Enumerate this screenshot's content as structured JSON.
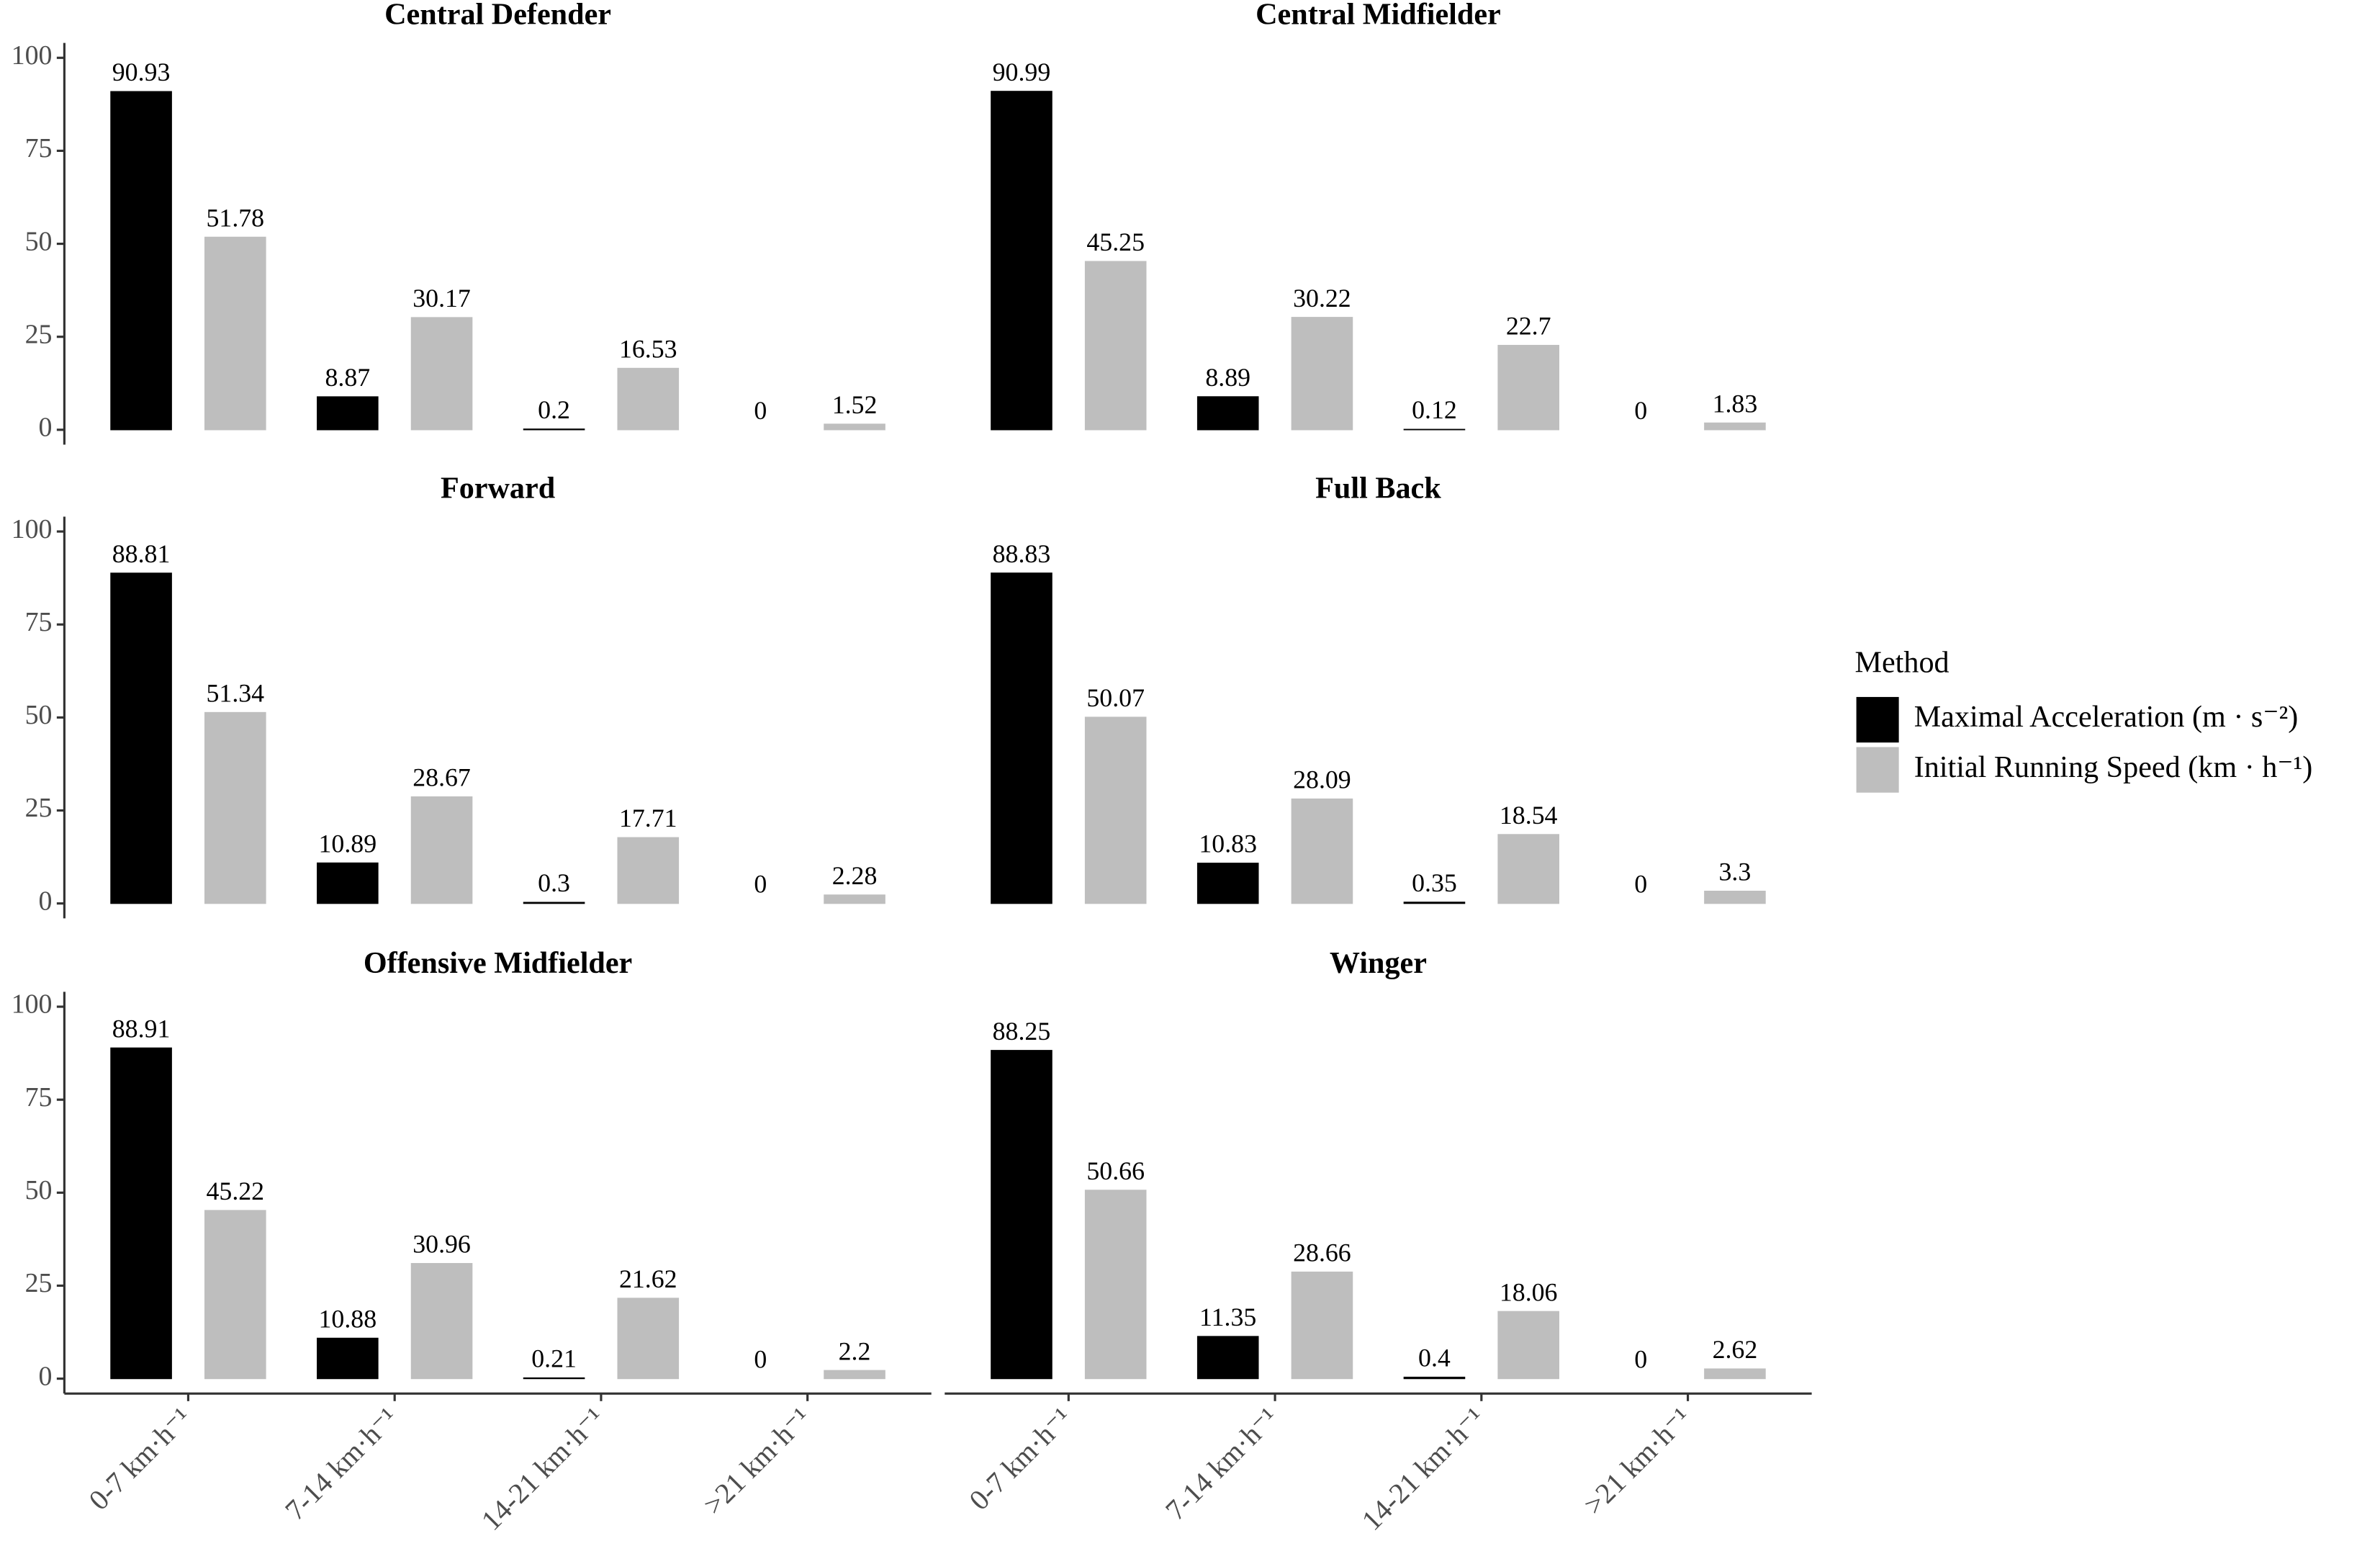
{
  "chart_data": {
    "type": "bar",
    "legend_title": "Method",
    "categories": [
      "0-7 km·h⁻¹",
      "7-14 km·h⁻¹",
      "14-21 km·h⁻¹",
      ">21 km·h⁻¹"
    ],
    "series": [
      {
        "name": "Maximal Acceleration (m · s⁻²)",
        "color": "#000000"
      },
      {
        "name": "Initial Running Speed (km · h⁻¹)",
        "color": "#bebebe"
      }
    ],
    "ylim": [
      -4,
      104
    ],
    "yticks": [
      0,
      25,
      50,
      75,
      100
    ],
    "grid": false,
    "panels": [
      {
        "title": "Central Defender",
        "series": [
          {
            "values": [
              90.93,
              8.87,
              0.2,
              0
            ]
          },
          {
            "values": [
              51.78,
              30.17,
              16.53,
              1.52
            ]
          }
        ]
      },
      {
        "title": "Central Midfielder",
        "series": [
          {
            "values": [
              90.99,
              8.89,
              0.12,
              0
            ]
          },
          {
            "values": [
              45.25,
              30.22,
              22.7,
              1.83
            ]
          }
        ]
      },
      {
        "title": "Forward",
        "series": [
          {
            "values": [
              88.81,
              10.89,
              0.3,
              0
            ]
          },
          {
            "values": [
              51.34,
              28.67,
              17.71,
              2.28
            ]
          }
        ]
      },
      {
        "title": "Full Back",
        "series": [
          {
            "values": [
              88.83,
              10.83,
              0.35,
              0
            ]
          },
          {
            "values": [
              50.07,
              28.09,
              18.54,
              3.3
            ]
          }
        ]
      },
      {
        "title": "Offensive Midfielder",
        "series": [
          {
            "values": [
              88.91,
              10.88,
              0.21,
              0
            ]
          },
          {
            "values": [
              45.22,
              30.96,
              21.62,
              2.2
            ]
          }
        ]
      },
      {
        "title": "Winger",
        "series": [
          {
            "values": [
              88.25,
              11.35,
              0.4,
              0
            ]
          },
          {
            "values": [
              50.66,
              28.66,
              18.06,
              2.62
            ]
          }
        ]
      }
    ]
  }
}
